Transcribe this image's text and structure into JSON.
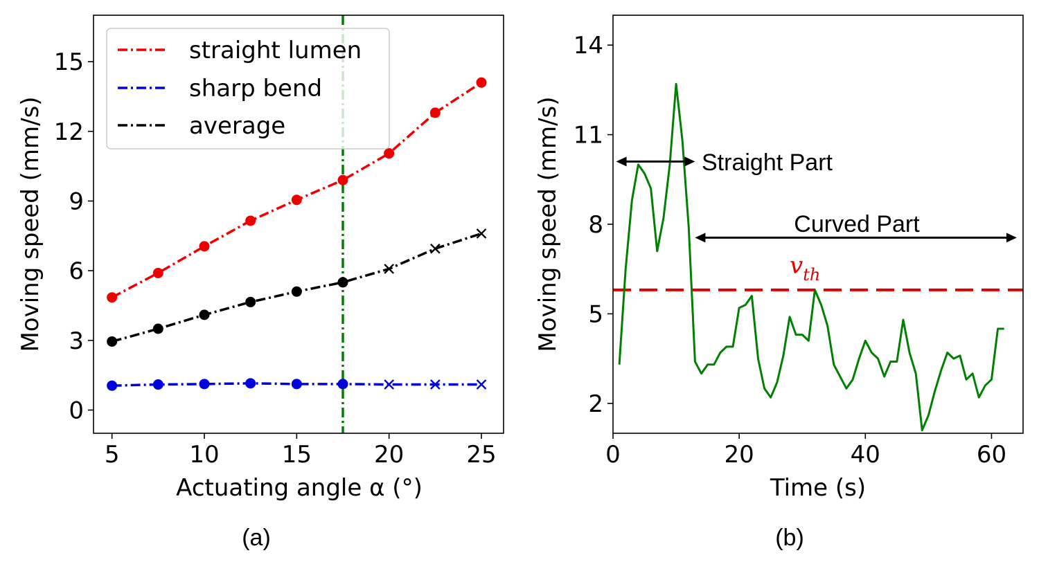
{
  "chart_data": [
    {
      "type": "line",
      "panel_caption": "(a)",
      "xlabel": "Actuating angle α (°)",
      "ylabel": "Moving speed (mm/s)",
      "xlim": [
        4.0,
        26.2
      ],
      "ylim": [
        -1.0,
        17.0
      ],
      "xticks": [
        "5",
        "10",
        "15",
        "20",
        "25"
      ],
      "yticks": [
        "0",
        "3",
        "6",
        "9",
        "12",
        "15"
      ],
      "x": [
        5,
        7.5,
        10,
        12.5,
        15,
        17.5,
        20,
        22.5,
        25
      ],
      "vline_x": 17.5,
      "series": [
        {
          "name": "straight lumen",
          "color": "#ee0000",
          "values": [
            4.85,
            5.9,
            7.05,
            8.15,
            9.05,
            9.9,
            11.05,
            12.8,
            14.1
          ],
          "markers": [
            "circle",
            "circle",
            "circle",
            "circle",
            "circle",
            "circle",
            "circle",
            "circle",
            "circle"
          ]
        },
        {
          "name": "sharp bend",
          "color": "#0000dd",
          "values": [
            1.05,
            1.1,
            1.12,
            1.15,
            1.12,
            1.12,
            1.1,
            1.1,
            1.1
          ],
          "markers": [
            "circle",
            "circle",
            "circle",
            "circle",
            "circle",
            "circle",
            "x",
            "x",
            "x"
          ]
        },
        {
          "name": "average",
          "color": "#000000",
          "values": [
            2.95,
            3.5,
            4.1,
            4.65,
            5.1,
            5.5,
            6.08,
            6.95,
            7.6
          ],
          "markers": [
            "circle",
            "circle",
            "circle",
            "circle",
            "circle",
            "circle",
            "x",
            "x",
            "x"
          ]
        }
      ],
      "legend_position": "top-left"
    },
    {
      "type": "line",
      "panel_caption": "(b)",
      "xlabel": "Time (s)",
      "ylabel": "Moving speed (mm/s)",
      "xlim": [
        0,
        65
      ],
      "ylim": [
        1.0,
        15.0
      ],
      "xticks": [
        "0",
        "20",
        "40",
        "60"
      ],
      "yticks": [
        "2",
        "5",
        "8",
        "11",
        "14"
      ],
      "threshold": 5.8,
      "threshold_label": "v",
      "threshold_sub": "th",
      "annotations": [
        {
          "text": "Straight Part",
          "from": 0.5,
          "to": 13,
          "y": 10.1
        },
        {
          "text": "Curved Part",
          "from": 13,
          "to": 64,
          "y": 7.55
        }
      ],
      "series": [
        {
          "name": "speed",
          "color": "#008000",
          "x": [
            1,
            2,
            3,
            4,
            5,
            6,
            7,
            8,
            9,
            10,
            11,
            12,
            13,
            14,
            15,
            16,
            17,
            18,
            19,
            20,
            21,
            22,
            23,
            24,
            25,
            26,
            27,
            28,
            29,
            30,
            31,
            32,
            33,
            34,
            35,
            36,
            37,
            38,
            39,
            40,
            41,
            42,
            43,
            44,
            45,
            46,
            47,
            48,
            49,
            50,
            51,
            52,
            53,
            54,
            55,
            56,
            57,
            58,
            59,
            60,
            61,
            62
          ],
          "values": [
            3.3,
            6.5,
            8.8,
            10.0,
            9.7,
            9.2,
            7.1,
            8.2,
            10.0,
            12.7,
            10.8,
            7.9,
            3.4,
            3.0,
            3.3,
            3.3,
            3.7,
            3.9,
            3.9,
            5.2,
            5.3,
            5.6,
            3.5,
            2.5,
            2.2,
            2.7,
            3.6,
            4.9,
            4.3,
            4.3,
            4.1,
            5.8,
            5.3,
            4.6,
            3.3,
            2.9,
            2.5,
            2.8,
            3.5,
            4.1,
            3.7,
            3.5,
            2.9,
            3.4,
            3.4,
            4.8,
            3.7,
            3.0,
            1.1,
            1.6,
            2.4,
            3.1,
            3.7,
            3.5,
            3.6,
            2.8,
            3.0,
            2.2,
            2.6,
            2.8,
            4.5,
            4.5
          ]
        }
      ]
    }
  ]
}
